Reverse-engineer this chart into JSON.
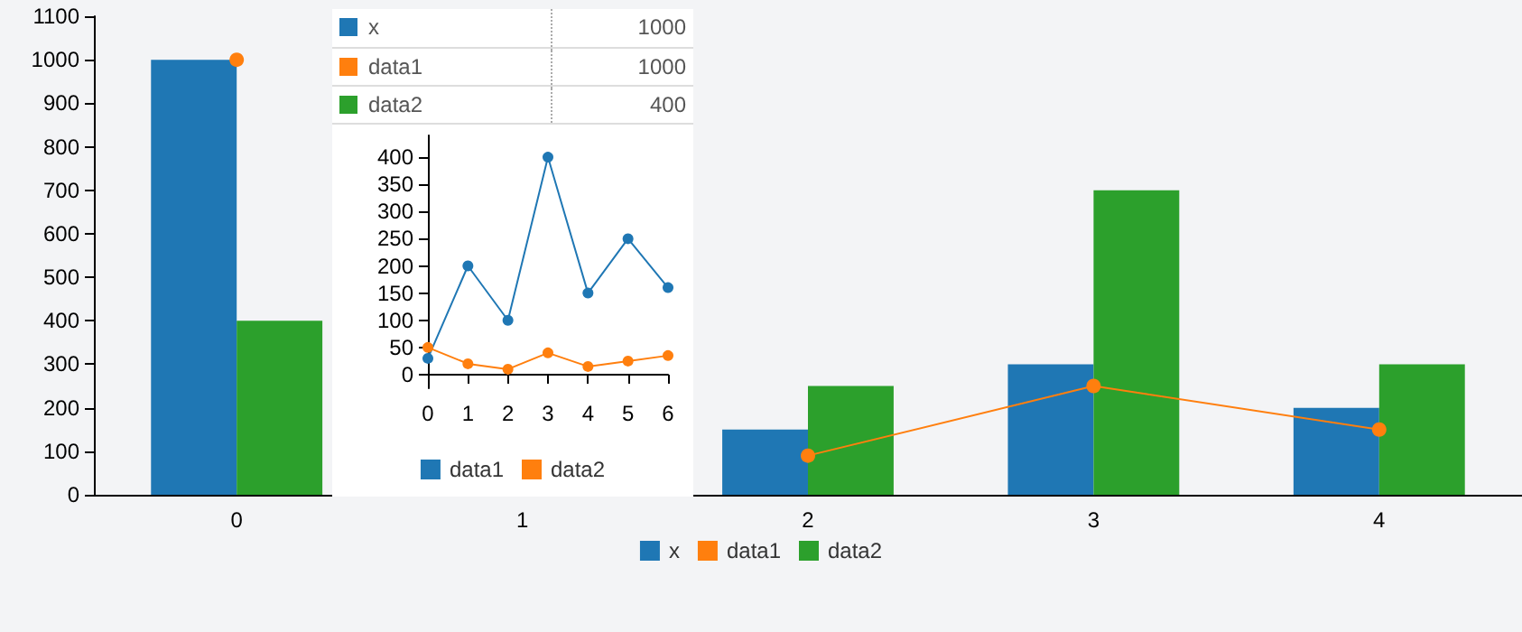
{
  "chart_data": [
    {
      "type": "bar",
      "categories": [
        "0",
        "1",
        "2",
        "3",
        "4"
      ],
      "series": [
        {
          "name": "x",
          "color": "#1f77b4",
          "values": [
            1000,
            null,
            150,
            300,
            200
          ]
        },
        {
          "name": "data1",
          "type": "line",
          "color": "#ff7f0e",
          "values": [
            1000,
            null,
            90,
            250,
            150
          ]
        },
        {
          "name": "data2",
          "color": "#2ca02c",
          "values": [
            400,
            null,
            250,
            700,
            300
          ]
        }
      ],
      "ylim": [
        0,
        1100
      ],
      "yticks": [
        0,
        100,
        200,
        300,
        400,
        500,
        600,
        700,
        800,
        900,
        1000,
        1100
      ],
      "grid": false,
      "legend": "bottom",
      "marker": "circle"
    },
    {
      "type": "other",
      "categories": [
        "x",
        "data1",
        "data2"
      ],
      "values": [
        1000,
        1000,
        400
      ],
      "colors": [
        "#1f77b4",
        "#ff7f0e",
        "#2ca02c"
      ],
      "data_labels": true
    },
    {
      "type": "line",
      "x": [
        0,
        1,
        2,
        3,
        4,
        5,
        6
      ],
      "series": [
        {
          "name": "data1",
          "color": "#1f77b4",
          "values": [
            30,
            200,
            100,
            400,
            150,
            250,
            160
          ]
        },
        {
          "name": "data2",
          "color": "#ff7f0e",
          "values": [
            50,
            20,
            10,
            40,
            15,
            25,
            35
          ]
        }
      ],
      "xlim": [
        0,
        6
      ],
      "xticks": [
        0,
        1,
        2,
        3,
        4,
        5,
        6
      ],
      "ylim": [
        -25,
        440
      ],
      "yticks": [
        0,
        50,
        100,
        150,
        200,
        250,
        300,
        350,
        400
      ],
      "grid": false,
      "legend": "bottom",
      "marker": "circle"
    }
  ]
}
